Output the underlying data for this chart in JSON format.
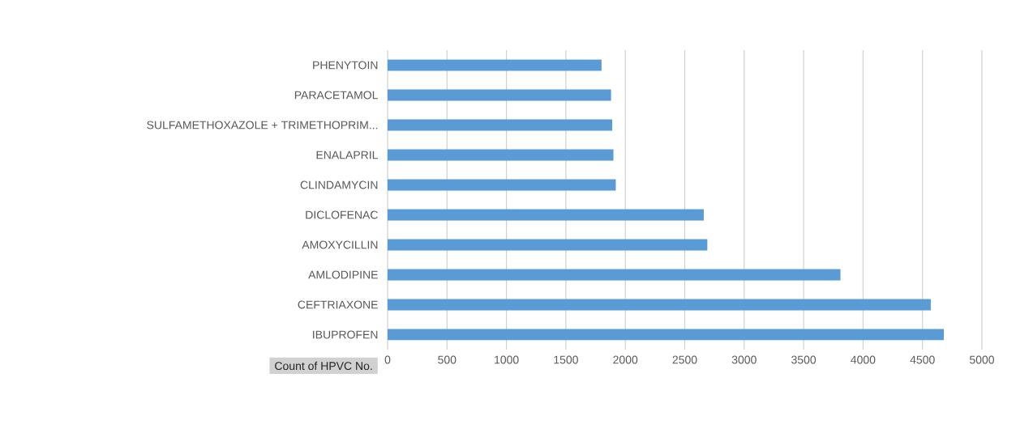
{
  "chart_data": {
    "type": "bar",
    "orientation": "horizontal",
    "xlabel": "Count of HPVC No.",
    "categories": [
      "PHENYTOIN",
      "PARACETAMOL",
      "SULFAMETHOXAZOLE + TRIMETHOPRIM...",
      "ENALAPRIL",
      "CLINDAMYCIN",
      "DICLOFENAC",
      "AMOXYCILLIN",
      "AMLODIPINE",
      "CEFTRIAXONE",
      "IBUPROFEN"
    ],
    "values": [
      1800,
      1880,
      1890,
      1900,
      1920,
      2660,
      2690,
      3810,
      4570,
      4680
    ],
    "color": "#5b9bd5",
    "xlim": [
      0,
      5000
    ],
    "xticks": [
      0,
      500,
      1000,
      1500,
      2000,
      2500,
      3000,
      3500,
      4000,
      4500,
      5000
    ],
    "grid": "x"
  }
}
